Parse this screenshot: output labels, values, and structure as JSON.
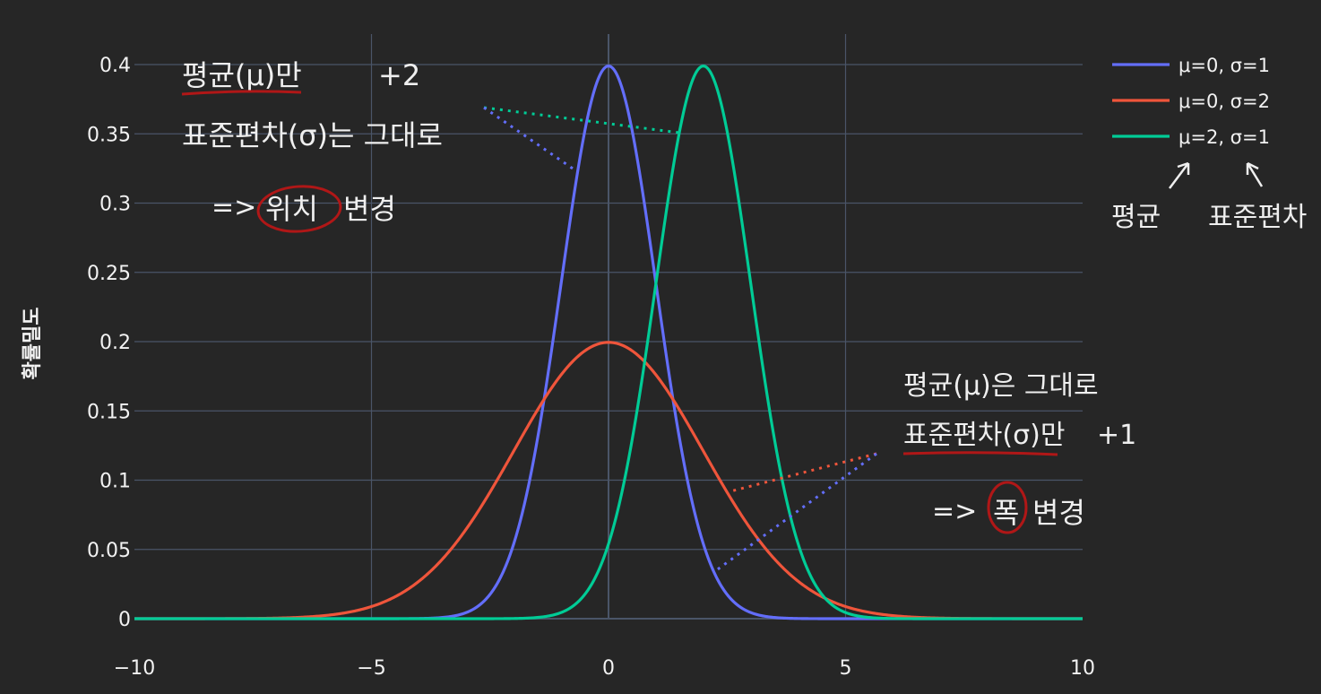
{
  "chart_data": {
    "type": "line",
    "ylabel": "확률밀도",
    "xlim": [
      -10,
      10
    ],
    "ylim": [
      0,
      0.42
    ],
    "x_ticks": [
      -10,
      -5,
      0,
      5,
      10
    ],
    "x_tick_labels": [
      "−10",
      "−5",
      "0",
      "5",
      "10"
    ],
    "y_ticks": [
      0,
      0.05,
      0.1,
      0.15,
      0.2,
      0.25,
      0.3,
      0.35,
      0.4
    ],
    "y_tick_labels": [
      "0",
      "0.05",
      "0.1",
      "0.15",
      "0.2",
      "0.25",
      "0.3",
      "0.35",
      "0.4"
    ],
    "grid": true,
    "legend_position": "top-right",
    "series": [
      {
        "name": "μ=0, σ=1",
        "mu": 0,
        "sigma": 1,
        "color": "#636efa"
      },
      {
        "name": "μ=0, σ=2",
        "mu": 0,
        "sigma": 2,
        "color": "#ef553b"
      },
      {
        "name": "μ=2, σ=1",
        "mu": 2,
        "sigma": 1,
        "color": "#00cc96"
      }
    ]
  },
  "annotations": {
    "top_line1": "평균(μ)만",
    "top_plus": "+2",
    "top_line2": "표준편차(σ)는 그대로",
    "top_arrow": "=>",
    "top_circled": "위치",
    "top_change": "변경",
    "bottom_line1": "평균(μ)은 그대로",
    "bottom_line2": "표준편차(σ)만",
    "bottom_plus": "+1",
    "bottom_arrow": "=>",
    "bottom_circled": "폭",
    "bottom_change": "변경",
    "legend_mean_note": "평균",
    "legend_std_note": "표준편차",
    "ink_color": "#b01717"
  }
}
